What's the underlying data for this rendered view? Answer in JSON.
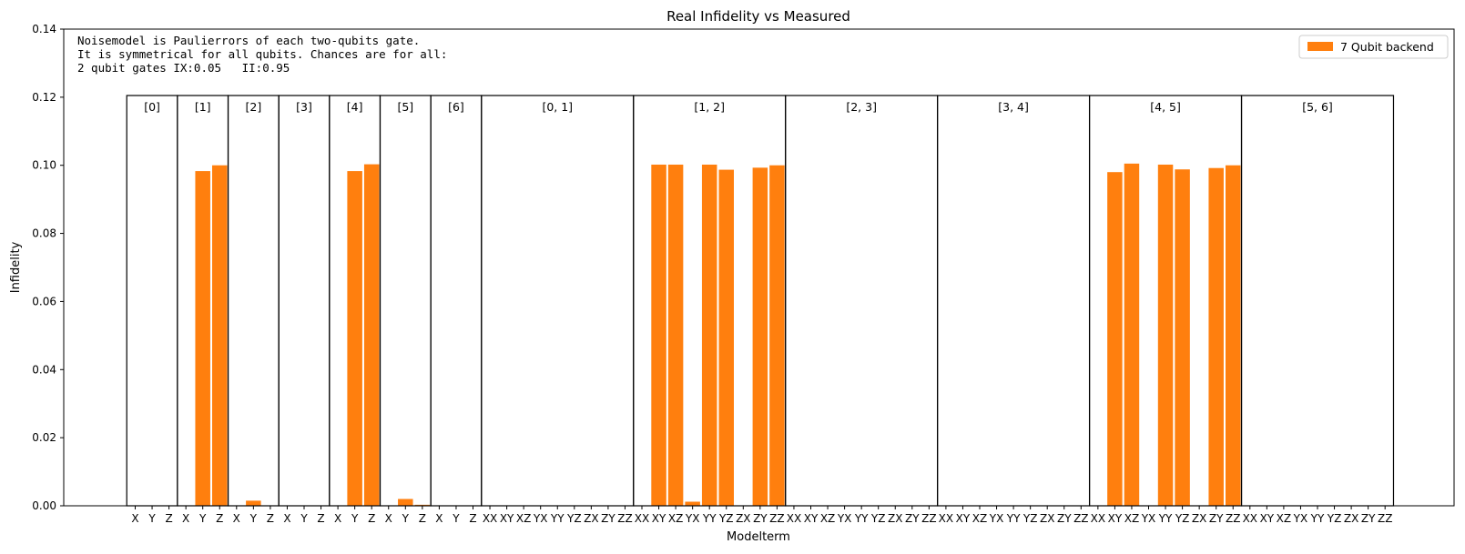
{
  "chart_data": {
    "type": "bar",
    "title": "Real Infidelity vs Measured",
    "xlabel": "Modelterm",
    "ylabel": "Infidelity",
    "ylim": [
      0,
      0.14
    ],
    "yticks": [
      "0.00",
      "0.02",
      "0.04",
      "0.06",
      "0.08",
      "0.10",
      "0.12",
      "0.14"
    ],
    "grid": false,
    "legend_position": "top-right",
    "series": [
      {
        "name": "7 Qubit backend",
        "color": "#ff7f0e",
        "groups": [
          {
            "label": "[0]",
            "terms": [
              "X",
              "Y",
              "Z"
            ],
            "values": [
              0,
              0,
              0
            ]
          },
          {
            "label": "[1]",
            "terms": [
              "X",
              "Y",
              "Z"
            ],
            "values": [
              0,
              0.0983,
              0.1
            ]
          },
          {
            "label": "[2]",
            "terms": [
              "X",
              "Y",
              "Z"
            ],
            "values": [
              0,
              0.0015,
              0
            ]
          },
          {
            "label": "[3]",
            "terms": [
              "X",
              "Y",
              "Z"
            ],
            "values": [
              0,
              0,
              0
            ]
          },
          {
            "label": "[4]",
            "terms": [
              "X",
              "Y",
              "Z"
            ],
            "values": [
              0,
              0.0983,
              0.1003
            ]
          },
          {
            "label": "[5]",
            "terms": [
              "X",
              "Y",
              "Z"
            ],
            "values": [
              0,
              0.002,
              0.0003
            ]
          },
          {
            "label": "[6]",
            "terms": [
              "X",
              "Y",
              "Z"
            ],
            "values": [
              0,
              0,
              0
            ]
          },
          {
            "label": "[0, 1]",
            "terms": [
              "XX",
              "XY",
              "XZ",
              "YX",
              "YY",
              "YZ",
              "ZX",
              "ZY",
              "ZZ"
            ],
            "values": [
              0,
              0,
              0,
              0,
              0,
              0,
              0,
              0,
              0
            ]
          },
          {
            "label": "[1, 2]",
            "terms": [
              "XX",
              "XY",
              "XZ",
              "YX",
              "YY",
              "YZ",
              "ZX",
              "ZY",
              "ZZ"
            ],
            "values": [
              0,
              0.1002,
              0.1002,
              0.0012,
              0.1002,
              0.0987,
              0,
              0.0993,
              0.1
            ]
          },
          {
            "label": "[2, 3]",
            "terms": [
              "XX",
              "XY",
              "XZ",
              "YX",
              "YY",
              "YZ",
              "ZX",
              "ZY",
              "ZZ"
            ],
            "values": [
              0,
              0,
              0,
              0,
              0,
              0,
              0,
              0,
              0
            ]
          },
          {
            "label": "[3, 4]",
            "terms": [
              "XX",
              "XY",
              "XZ",
              "YX",
              "YY",
              "YZ",
              "ZX",
              "ZY",
              "ZZ"
            ],
            "values": [
              0,
              0,
              0,
              0,
              0,
              0,
              0,
              0,
              0
            ]
          },
          {
            "label": "[4, 5]",
            "terms": [
              "XX",
              "XY",
              "XZ",
              "YX",
              "YY",
              "YZ",
              "ZX",
              "ZY",
              "ZZ"
            ],
            "values": [
              0,
              0.098,
              0.1005,
              0,
              0.1002,
              0.0988,
              0,
              0.0992,
              0.1
            ]
          },
          {
            "label": "[5, 6]",
            "terms": [
              "XX",
              "XY",
              "XZ",
              "YX",
              "YY",
              "YZ",
              "ZX",
              "ZY",
              "ZZ"
            ],
            "values": [
              0,
              0,
              0,
              0,
              0,
              0,
              0,
              0,
              0
            ]
          }
        ]
      }
    ],
    "group_box_top": 0.1205,
    "annotation": [
      "Noisemodel is Paulierrors of each two-qubits gate.",
      "It is symmetrical for all qubits. Chances are for all:",
      "2 qubit gates IX:0.05   II:0.95"
    ]
  }
}
